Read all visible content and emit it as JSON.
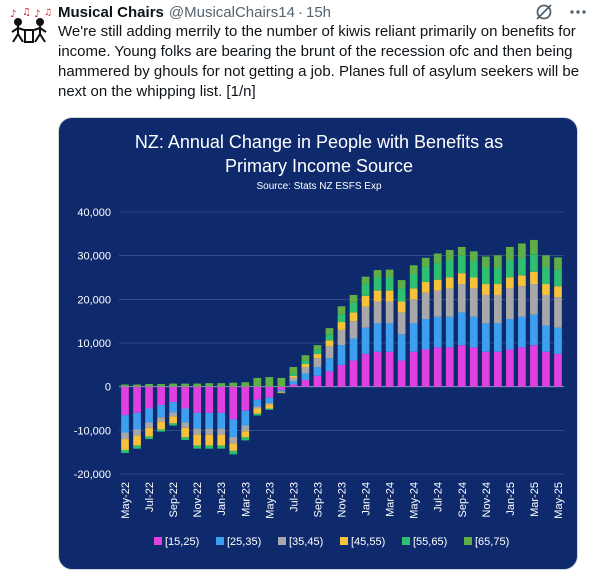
{
  "tweet": {
    "display_name": "Musical Chairs",
    "handle": "@MusicalChairs14",
    "separator": "·",
    "time": "15h",
    "text": "We're still adding merrily to the number of kiwis reliant primarily  on benefits for income. Young folks are bearing the brunt of the recession ofc and then being hammered by ghouls for not getting a job. Planes full of asylum seekers will be next on the whipping list. [1/n]"
  },
  "icons": {
    "grok": "grok-icon",
    "more": "more-options-icon"
  },
  "chart_data": {
    "type": "bar",
    "stacked": true,
    "title_line1": "NZ: Annual Change in People with Benefits as",
    "title_line2": "Primary Income Source",
    "subtitle": "Source: Stats NZ ESFS Exp",
    "ylim": [
      -20000,
      40000
    ],
    "yticks": [
      40000,
      30000,
      20000,
      10000,
      0,
      -10000,
      -20000
    ],
    "ytick_labels": [
      "40,000",
      "30,000",
      "20,000",
      "10,000",
      "0",
      "-10,000",
      "-20,000"
    ],
    "x_tick_labels": [
      "May-22",
      "Jul-22",
      "Sep-22",
      "Nov-22",
      "Jan-23",
      "Mar-23",
      "May-23",
      "Jul-23",
      "Sep-23",
      "Nov-23",
      "Jan-24",
      "Mar-24",
      "May-24",
      "Jul-24",
      "Sep-24",
      "Nov-24",
      "Jan-25",
      "Mar-25",
      "May-25"
    ],
    "categories": [
      "May-22",
      "Jun-22",
      "Jul-22",
      "Aug-22",
      "Sep-22",
      "Oct-22",
      "Nov-22",
      "Dec-22",
      "Jan-23",
      "Feb-23",
      "Mar-23",
      "Apr-23",
      "May-23",
      "Jun-23",
      "Jul-23",
      "Aug-23",
      "Sep-23",
      "Oct-23",
      "Nov-23",
      "Dec-23",
      "Jan-24",
      "Feb-24",
      "Mar-24",
      "Apr-24",
      "May-24",
      "Jun-24",
      "Jul-24",
      "Aug-24",
      "Sep-24",
      "Oct-24",
      "Nov-24",
      "Dec-24",
      "Jan-25",
      "Feb-25",
      "Mar-25",
      "Apr-25",
      "May-25"
    ],
    "legend_position": "bottom",
    "colors": {
      "background": "#0f2a6c",
      "text": "#ffffff",
      "grid": "#4a5e96",
      "s15_25": "#e040e0",
      "s25_35": "#3c9ff0",
      "s35_45": "#a8a8a8",
      "s45_55": "#f7c23b",
      "s55_65": "#2fbf71",
      "s65_75": "#5fae48"
    },
    "series": [
      {
        "name": "[15,25)",
        "color_key": "s15_25",
        "values": [
          -6500,
          -6000,
          -5000,
          -4200,
          -3500,
          -5000,
          -6000,
          -6000,
          -6000,
          -7500,
          -5500,
          -3000,
          -2500,
          -800,
          500,
          1500,
          2500,
          3500,
          5000,
          6000,
          7500,
          8000,
          8000,
          6000,
          8000,
          8500,
          9000,
          9000,
          9500,
          9000,
          8000,
          8000,
          8500,
          9000,
          9500,
          8000,
          7500
        ]
      },
      {
        "name": "[25,35)",
        "color_key": "s25_35",
        "values": [
          -4000,
          -3800,
          -3200,
          -2800,
          -2400,
          -3200,
          -3600,
          -3600,
          -3600,
          -4000,
          -3400,
          -1500,
          -1200,
          -300,
          800,
          1500,
          2000,
          3000,
          4500,
          5000,
          6000,
          6500,
          6500,
          6000,
          6500,
          7000,
          7000,
          7000,
          7500,
          7000,
          6500,
          6500,
          7000,
          7000,
          7000,
          6000,
          6000
        ]
      },
      {
        "name": "[35,45)",
        "color_key": "s35_45",
        "values": [
          -1500,
          -1400,
          -1200,
          -1000,
          -900,
          -1200,
          -1400,
          -1400,
          -1400,
          -1500,
          -1300,
          -500,
          -400,
          -100,
          800,
          1500,
          2000,
          2800,
          3500,
          4000,
          4800,
          5000,
          5000,
          5000,
          5500,
          6000,
          6000,
          6500,
          6500,
          6500,
          6500,
          6500,
          7000,
          7000,
          7000,
          7000,
          7000
        ]
      },
      {
        "name": "[45,55)",
        "color_key": "s45_55",
        "values": [
          -2500,
          -2300,
          -2000,
          -1800,
          -1600,
          -2200,
          -2500,
          -2500,
          -2500,
          -1700,
          -1400,
          -1200,
          -900,
          -200,
          400,
          700,
          1000,
          1300,
          1800,
          2000,
          2500,
          2500,
          2500,
          2500,
          2500,
          2500,
          2500,
          2500,
          2500,
          2500,
          2500,
          2500,
          2500,
          2500,
          2800,
          2500,
          2500
        ]
      },
      {
        "name": "[55,65)",
        "color_key": "s55_65",
        "values": [
          -700,
          -700,
          -600,
          -500,
          -500,
          -600,
          -700,
          -700,
          -700,
          -800,
          -700,
          -400,
          -300,
          -100,
          500,
          800,
          1000,
          1300,
          1800,
          2300,
          2800,
          3000,
          3000,
          3000,
          3300,
          3500,
          3800,
          4000,
          4000,
          3800,
          3800,
          3800,
          4000,
          4000,
          4000,
          3800,
          3800
        ]
      },
      {
        "name": "[65,75)",
        "color_key": "s65_75",
        "values": [
          500,
          500,
          600,
          600,
          700,
          700,
          700,
          800,
          800,
          900,
          1000,
          2000,
          2200,
          2000,
          1500,
          1200,
          1000,
          1500,
          1800,
          1700,
          1600,
          1700,
          1800,
          1900,
          2000,
          2000,
          2200,
          2300,
          2000,
          2200,
          2500,
          2800,
          3000,
          3300,
          3300,
          2800,
          2800
        ]
      }
    ]
  }
}
